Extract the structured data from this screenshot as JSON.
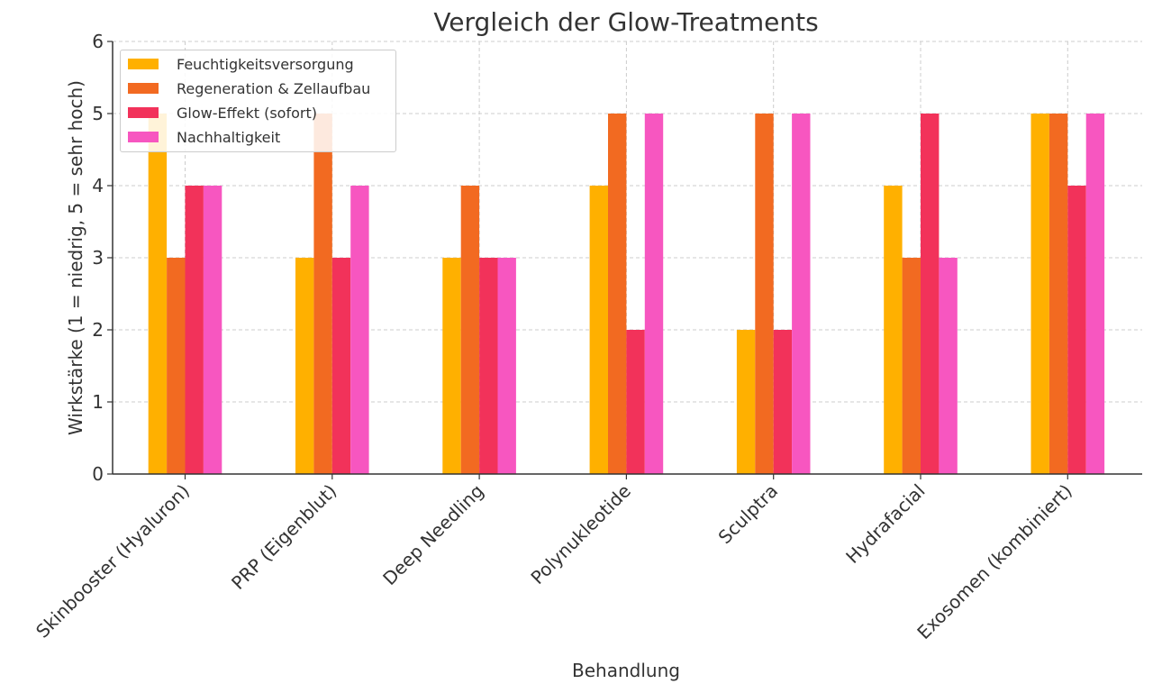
{
  "chart_data": {
    "type": "bar",
    "title": "Vergleich der Glow-Treatments",
    "xlabel": "Behandlung",
    "ylabel": "Wirkstärke (1 = niedrig, 5 = sehr hoch)",
    "ylim": [
      0,
      6
    ],
    "yticks": [
      "0",
      "1",
      "2",
      "3",
      "4",
      "5",
      "6"
    ],
    "grid": true,
    "legend_position": "top-left",
    "categories": [
      "Skinbooster (Hyaluron)",
      "PRP (Eigenblut)",
      "Deep Needling",
      "Polynukleotide",
      "Sculptra",
      "Hydrafacial",
      "Exosomen (kombiniert)"
    ],
    "series": [
      {
        "name": "Feuchtigkeitsversorgung",
        "color": "#FFB000",
        "values": [
          5,
          3,
          3,
          4,
          2,
          4,
          5
        ]
      },
      {
        "name": "Regeneration & Zellaufbau",
        "color": "#F26A21",
        "values": [
          3,
          5,
          4,
          5,
          5,
          3,
          5
        ]
      },
      {
        "name": "Glow-Effekt (sofort)",
        "color": "#F2325A",
        "values": [
          4,
          3,
          3,
          2,
          2,
          5,
          4
        ]
      },
      {
        "name": "Nachhaltigkeit",
        "color": "#F756C0",
        "values": [
          4,
          4,
          3,
          5,
          5,
          3,
          5
        ]
      }
    ]
  }
}
